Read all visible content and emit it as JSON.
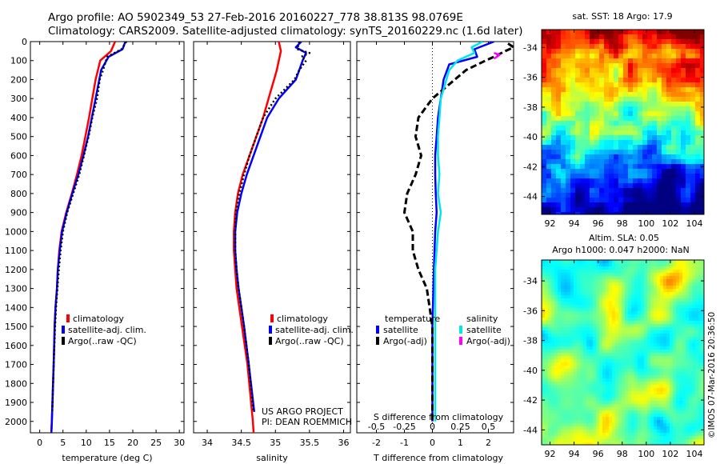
{
  "header": {
    "line1": "Argo profile: AO 5902349_53 27-Feb-2016 20160227_778 38.813S 98.0769E",
    "line2": "Climatology: CARS2009. Satellite-adjusted climatology: synTS_20160229.nc (1.6d later)"
  },
  "chart_data": [
    {
      "type": "line",
      "id": "temperature",
      "xlabel": "temperature (deg C)",
      "xlim": [
        -2,
        31
      ],
      "ylim": [
        2060,
        0
      ],
      "xticks": [
        0,
        5,
        10,
        15,
        20,
        25,
        30
      ],
      "yticks": [
        0,
        100,
        200,
        300,
        400,
        500,
        600,
        700,
        800,
        900,
        1000,
        1100,
        1200,
        1300,
        1400,
        1500,
        1600,
        1700,
        1800,
        1900,
        2000
      ],
      "legend": [
        "climatology",
        "satellite-adj. clim.",
        "Argo(..raw -QC)"
      ],
      "legend_position": "lower-middle",
      "series": [
        {
          "name": "climatology",
          "color": "#ff0000",
          "depth": [
            0,
            50,
            100,
            200,
            300,
            400,
            500,
            600,
            700,
            800,
            900,
            1000,
            1100,
            1200,
            1300,
            1400,
            1500,
            1700,
            2000,
            2060
          ],
          "values": [
            16.2,
            15.3,
            13.0,
            12.0,
            11.3,
            10.6,
            9.8,
            9.0,
            8.0,
            6.9,
            5.7,
            4.7,
            4.2,
            3.9,
            3.7,
            3.4,
            3.2,
            3.0,
            2.6,
            2.5
          ]
        },
        {
          "name": "satellite-adj. clim.",
          "color": "#0000ff",
          "depth": [
            0,
            40,
            80,
            150,
            200,
            300,
            400,
            500,
            600,
            700,
            800,
            900,
            1000,
            1100,
            1200,
            1300,
            1400,
            1500,
            1700,
            2000,
            2060
          ],
          "values": [
            18.4,
            17.8,
            14.8,
            13.2,
            12.8,
            12.0,
            11.2,
            10.4,
            9.4,
            8.3,
            7.0,
            5.8,
            4.8,
            4.3,
            3.9,
            3.7,
            3.4,
            3.2,
            3.0,
            2.6,
            2.5
          ]
        },
        {
          "name": "Argo(..raw -QC)",
          "color": "#000000",
          "depth": [
            0,
            40,
            80,
            150,
            200,
            300,
            400,
            500,
            600,
            700,
            800,
            900,
            1000,
            1100,
            1200,
            1300,
            1400,
            1500,
            1700,
            1950
          ],
          "values": [
            18.6,
            17.6,
            14.5,
            13.6,
            12.9,
            12.3,
            11.3,
            10.5,
            9.5,
            8.5,
            7.2,
            5.9,
            5.0,
            4.5,
            4.1,
            3.8,
            3.5,
            3.3,
            3.0,
            2.7
          ]
        }
      ]
    },
    {
      "type": "line",
      "id": "salinity",
      "xlabel": "salinity",
      "xlim": [
        33.8,
        36.1
      ],
      "ylim": [
        2060,
        0
      ],
      "xticks": [
        34,
        34.5,
        35,
        35.5,
        36
      ],
      "legend": [
        "climatology",
        "satellite-adj. clim.",
        "Argo(..raw -QC)"
      ],
      "legend_position": "lower-right",
      "series": [
        {
          "name": "climatology",
          "color": "#ff0000",
          "depth": [
            0,
            50,
            100,
            150,
            200,
            300,
            400,
            500,
            600,
            700,
            800,
            900,
            1000,
            1100,
            1200,
            1300,
            1400,
            1500,
            1700,
            2000,
            2060
          ],
          "values": [
            35.05,
            35.08,
            35.05,
            35.02,
            34.98,
            34.9,
            34.82,
            34.72,
            34.62,
            34.52,
            34.45,
            34.41,
            34.39,
            34.39,
            34.41,
            34.43,
            34.47,
            34.51,
            34.59,
            34.67,
            34.68
          ]
        },
        {
          "name": "satellite-adj. clim.",
          "color": "#0000ff",
          "depth": [
            0,
            30,
            60,
            100,
            150,
            200,
            300,
            400,
            500,
            600,
            700,
            800,
            900,
            1000,
            1100,
            1200,
            1300,
            1400,
            1500,
            1700,
            1950
          ],
          "values": [
            35.38,
            35.3,
            35.45,
            35.4,
            35.35,
            35.3,
            35.05,
            34.88,
            34.78,
            34.68,
            34.58,
            34.5,
            34.44,
            34.41,
            34.41,
            34.43,
            34.46,
            34.5,
            34.54,
            34.61,
            34.69
          ]
        },
        {
          "name": "Argo(..raw -QC)",
          "color": "#000000",
          "depth": [
            0,
            40,
            60,
            80,
            100,
            150,
            200,
            300,
            400,
            500,
            600,
            700,
            800,
            900,
            1000,
            1100,
            1200,
            1300,
            1400,
            1500,
            1700,
            1950
          ],
          "values": [
            35.35,
            35.32,
            35.5,
            35.38,
            35.45,
            35.35,
            35.28,
            35.0,
            34.82,
            34.72,
            34.62,
            34.54,
            34.47,
            34.42,
            34.41,
            34.41,
            34.43,
            34.46,
            34.5,
            34.54,
            34.61,
            34.68
          ]
        }
      ],
      "annotation": [
        "US ARGO PROJECT",
        "PI: DEAN ROEMMICH"
      ]
    },
    {
      "type": "line",
      "id": "difference",
      "xlabel": "T difference from climatology",
      "xlabel2": "S difference from climatology",
      "xlim": [
        -2.7,
        2.9
      ],
      "ylim": [
        2060,
        0
      ],
      "xticks": [
        -2,
        -1,
        0,
        1,
        2
      ],
      "xticks_top": [
        "-0.5",
        "-0.25",
        "0",
        "0.25",
        "0.5"
      ],
      "legend_titles": [
        "temperature",
        "salinity"
      ],
      "legend": [
        "satellite",
        "Argo(-adj)",
        "satellite",
        "Argo(-adj)"
      ],
      "legend_position": "lower-middle",
      "zero_line": "dotted",
      "series": [
        {
          "name": "satellite",
          "group": "temperature",
          "color": "#0000ff",
          "depth": [
            0,
            40,
            80,
            120,
            200,
            300,
            400,
            500,
            600,
            700,
            800,
            900,
            1000,
            1200,
            1500,
            2000
          ],
          "values": [
            2.2,
            1.5,
            1.6,
            0.6,
            0.4,
            0.3,
            0.2,
            0.15,
            0.1,
            0.1,
            0.12,
            0.15,
            0.1,
            0.05,
            0.0,
            0.0
          ]
        },
        {
          "name": "Argo(-adj)",
          "group": "temperature",
          "color": "#000000",
          "depth": [
            10,
            30,
            50,
            80,
            100,
            150,
            200,
            300,
            400,
            500,
            600,
            700,
            800,
            900,
            1000,
            1100,
            1200,
            1300,
            1400,
            1500,
            1800,
            2000
          ],
          "values": [
            2.7,
            2.9,
            2.6,
            2.2,
            1.9,
            1.2,
            0.8,
            0.0,
            -0.5,
            -0.6,
            -0.4,
            -0.6,
            -0.9,
            -1.0,
            -0.7,
            -0.7,
            -0.5,
            -0.2,
            -0.1,
            0.0,
            0.0,
            0.0
          ]
        },
        {
          "name": "satellite",
          "group": "salinity",
          "color": "#00e5ee",
          "depth": [
            0,
            30,
            60,
            100,
            150,
            200,
            300,
            400,
            500,
            600,
            700,
            800,
            900,
            1000,
            1200,
            1500,
            2000
          ],
          "values": [
            1.8,
            1.4,
            1.5,
            0.9,
            0.6,
            0.5,
            0.3,
            0.25,
            0.2,
            0.2,
            0.25,
            0.2,
            0.3,
            0.2,
            0.1,
            0.1,
            0.1
          ]
        },
        {
          "name": "Argo(-adj)",
          "group": "salinity",
          "color": "#ff00ff",
          "depth": [
            60,
            70,
            80,
            90
          ],
          "values": [
            2.2,
            2.4,
            2.3,
            2.2
          ]
        }
      ]
    },
    {
      "type": "heatmap",
      "id": "sst",
      "title": "sat. SST: 18 Argo: 17.9",
      "xticks": [
        92,
        94,
        96,
        98,
        100,
        102,
        104
      ],
      "yticks": [
        -34,
        -36,
        -38,
        -40,
        -42,
        -44
      ],
      "xlim": [
        91.3,
        104.8
      ],
      "ylim": [
        -45.2,
        -32.8
      ]
    },
    {
      "type": "heatmap",
      "id": "sla",
      "title": "Altim. SLA: 0.05",
      "subtitle": "Argo h1000: 0.047 h2000: NaN",
      "xticks": [
        92,
        94,
        96,
        98,
        100,
        102,
        104
      ],
      "yticks": [
        -34,
        -36,
        -38,
        -40,
        -42,
        -44
      ],
      "xlim": [
        91.3,
        104.8
      ],
      "ylim": [
        -45.0,
        -32.6
      ]
    }
  ],
  "credit": "©IMOS 07-Mar-2016 20:36:50"
}
